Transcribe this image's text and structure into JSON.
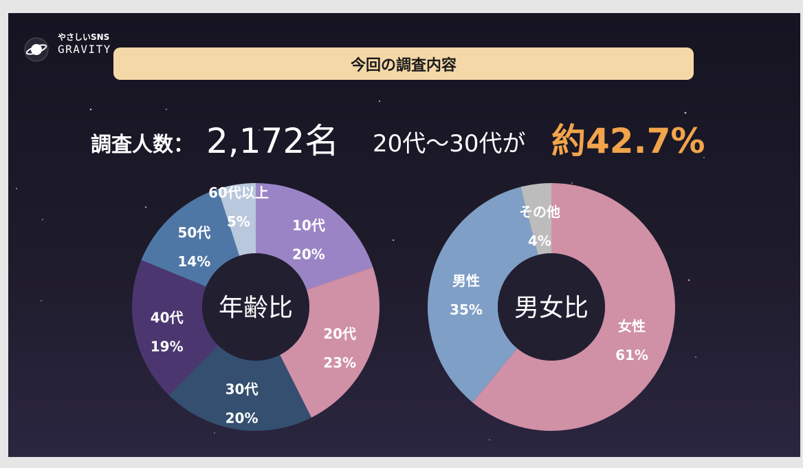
{
  "logo": {
    "small_text": "やさしいSNS",
    "name": "GRAVITY"
  },
  "banner": {
    "title": "今回の調査内容"
  },
  "stats": {
    "label": "調査人数：",
    "respondents": "2,172名",
    "age_text": "20代〜30代が",
    "age_percent": "約42.7%"
  },
  "chart_data": [
    {
      "type": "pie",
      "center_label": "年齢比",
      "categories": [
        "10代",
        "20代",
        "30代",
        "40代",
        "50代",
        "60代以上"
      ],
      "values": [
        20,
        23,
        20,
        19,
        14,
        5
      ],
      "value_labels": [
        "20%",
        "23%",
        "20%",
        "19%",
        "14%",
        "5%"
      ],
      "colors": [
        "#9b84c6",
        "#d090a6",
        "#344f70",
        "#4c3670",
        "#4e77a6",
        "#b9c8dc"
      ]
    },
    {
      "type": "pie",
      "center_label": "男女比",
      "categories": [
        "女性",
        "男性",
        "その他"
      ],
      "values": [
        61,
        35,
        4
      ],
      "value_labels": [
        "61%",
        "35%",
        "4%"
      ],
      "colors": [
        "#d090a6",
        "#7f9fc6",
        "#bcbcbc"
      ]
    }
  ]
}
